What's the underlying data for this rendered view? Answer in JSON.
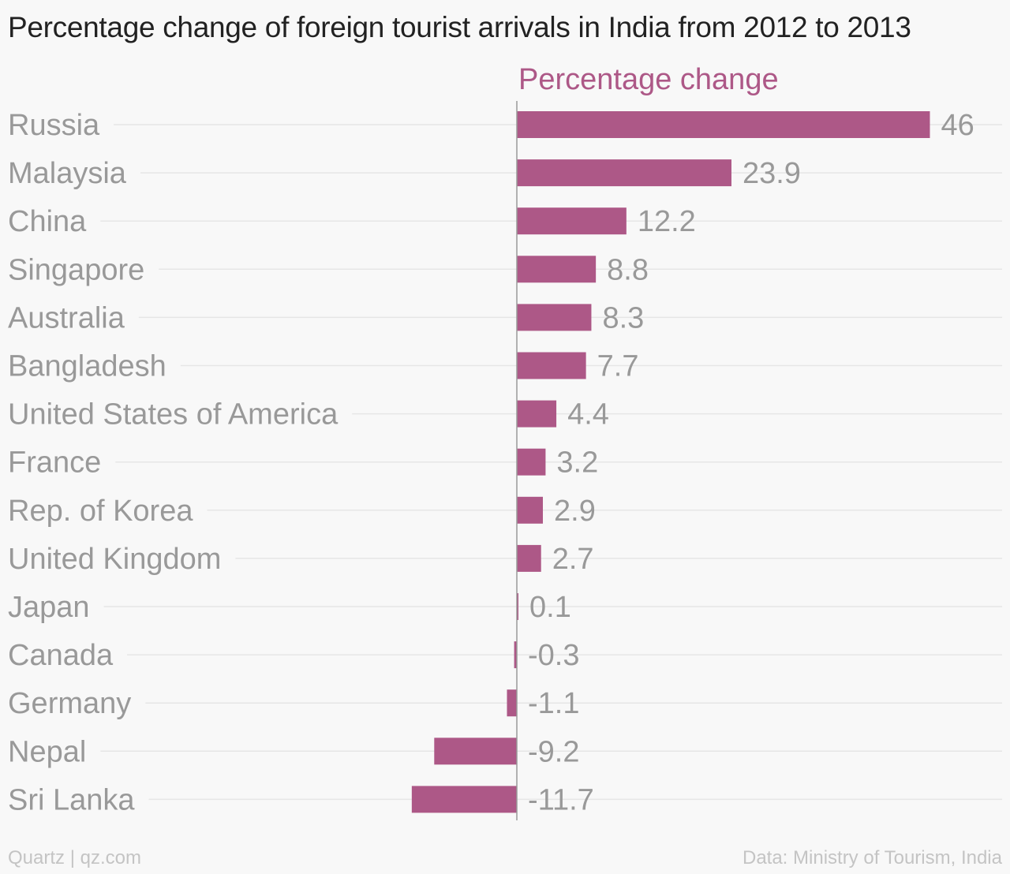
{
  "title": "Percentage change of foreign tourist arrivals in India from 2012 to 2013",
  "footer": {
    "credit": "Quartz | qz.com",
    "source": "Data: Ministry of Tourism, India"
  },
  "colors": {
    "bar": "#ad5887",
    "text": "#999999",
    "grid": "#e6e6e6",
    "axis": "#999999"
  },
  "chart_data": {
    "type": "bar",
    "orientation": "horizontal",
    "categories": [
      "Russia",
      "Malaysia",
      "China",
      "Singapore",
      "Australia",
      "Bangladesh",
      "United States of America",
      "France",
      "Rep. of Korea",
      "United Kingdom",
      "Japan",
      "Canada",
      "Germany",
      "Nepal",
      "Sri Lanka"
    ],
    "series": [
      {
        "name": "Percentage change",
        "values": [
          46,
          23.9,
          12.2,
          8.8,
          8.3,
          7.7,
          4.4,
          3.2,
          2.9,
          2.7,
          0.1,
          -0.3,
          -1.1,
          -9.2,
          -11.7
        ]
      }
    ],
    "value_labels": [
      "46",
      "23.9",
      "12.2",
      "8.8",
      "8.3",
      "7.7",
      "4.4",
      "3.2",
      "2.9",
      "2.7",
      "0.1",
      "-0.3",
      "-1.1",
      "-9.2",
      "-11.7"
    ],
    "xlim": [
      -11.7,
      46
    ],
    "grid": true,
    "legend": "top"
  }
}
